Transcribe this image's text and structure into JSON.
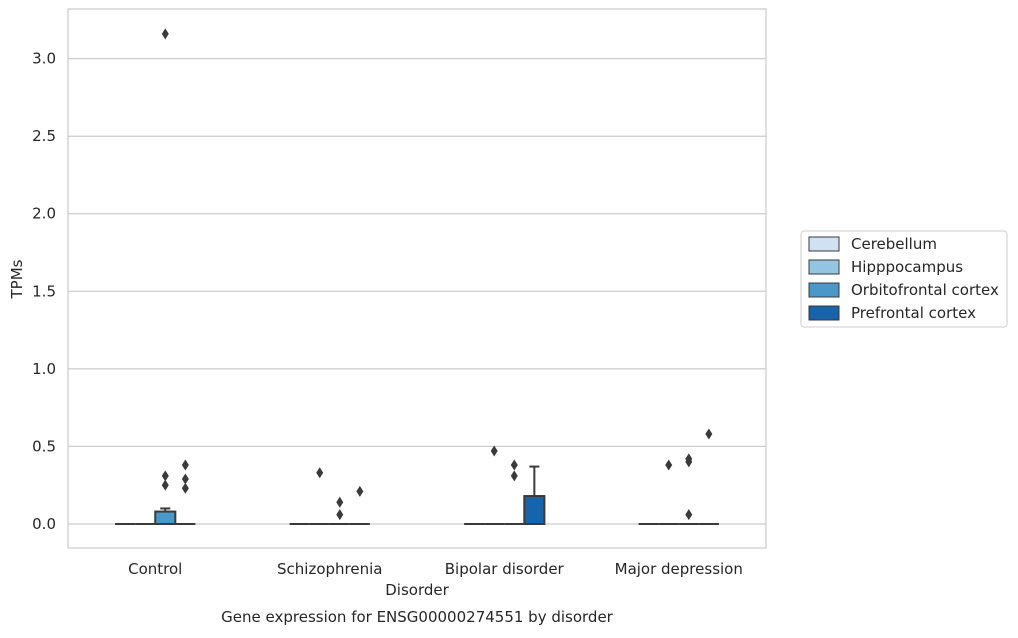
{
  "chart_data": {
    "type": "box",
    "title": "",
    "caption": "Gene expression for ENSG00000274551 by disorder",
    "xlabel": "Disorder",
    "ylabel": "TPMs",
    "ylim": [
      -0.155,
      3.32
    ],
    "yticks": [
      0.0,
      0.5,
      1.0,
      1.5,
      2.0,
      2.5,
      3.0
    ],
    "ytick_labels": [
      "0.0",
      "0.5",
      "1.0",
      "1.5",
      "2.0",
      "2.5",
      "3.0"
    ],
    "grid": "horizontal",
    "legend_position": "right",
    "categories": [
      "Control",
      "Schizophrenia",
      "Bipolar disorder",
      "Major depression"
    ],
    "series": [
      {
        "name": "Cerebellum",
        "color": "#d0e1f2",
        "boxes": [
          {
            "q1": 0,
            "median": 0,
            "q3": 0,
            "whisker_low": 0,
            "whisker_high": 0,
            "outliers": []
          },
          {
            "q1": 0,
            "median": 0,
            "q3": 0,
            "whisker_low": 0,
            "whisker_high": 0,
            "outliers": []
          },
          {
            "q1": 0,
            "median": 0,
            "q3": 0,
            "whisker_low": 0,
            "whisker_high": 0,
            "outliers": []
          },
          {
            "q1": 0,
            "median": 0,
            "q3": 0,
            "whisker_low": 0,
            "whisker_high": 0,
            "outliers": []
          }
        ]
      },
      {
        "name": "Hipppocampus",
        "color": "#94c4df",
        "boxes": [
          {
            "q1": 0,
            "median": 0,
            "q3": 0,
            "whisker_low": 0,
            "whisker_high": 0,
            "outliers": []
          },
          {
            "q1": 0,
            "median": 0,
            "q3": 0,
            "whisker_low": 0,
            "whisker_high": 0,
            "outliers": [
              0.33
            ]
          },
          {
            "q1": 0,
            "median": 0,
            "q3": 0,
            "whisker_low": 0,
            "whisker_high": 0,
            "outliers": [
              0.47
            ]
          },
          {
            "q1": 0,
            "median": 0,
            "q3": 0,
            "whisker_low": 0,
            "whisker_high": 0,
            "outliers": [
              0.38
            ]
          }
        ]
      },
      {
        "name": "Orbitofrontal cortex",
        "color": "#4a98c9",
        "boxes": [
          {
            "q1": 0,
            "median": 0,
            "q3": 0.08,
            "whisker_low": 0,
            "whisker_high": 0.1,
            "outliers": [
              3.16,
              0.31,
              0.25
            ]
          },
          {
            "q1": 0,
            "median": 0,
            "q3": 0,
            "whisker_low": 0,
            "whisker_high": 0,
            "outliers": [
              0.14,
              0.06
            ]
          },
          {
            "q1": 0,
            "median": 0,
            "q3": 0,
            "whisker_low": 0,
            "whisker_high": 0,
            "outliers": [
              0.38,
              0.31
            ]
          },
          {
            "q1": 0,
            "median": 0,
            "q3": 0,
            "whisker_low": 0,
            "whisker_high": 0,
            "outliers": [
              0.42,
              0.4,
              0.06
            ]
          }
        ]
      },
      {
        "name": "Prefrontal cortex",
        "color": "#1764ab",
        "boxes": [
          {
            "q1": 0,
            "median": 0,
            "q3": 0,
            "whisker_low": 0,
            "whisker_high": 0,
            "outliers": [
              0.38,
              0.29,
              0.23
            ]
          },
          {
            "q1": 0,
            "median": 0,
            "q3": 0,
            "whisker_low": 0,
            "whisker_high": 0,
            "outliers": [
              0.21
            ]
          },
          {
            "q1": 0,
            "median": 0,
            "q3": 0.18,
            "whisker_low": 0,
            "whisker_high": 0.37,
            "outliers": []
          },
          {
            "q1": 0,
            "median": 0,
            "q3": 0,
            "whisker_low": 0,
            "whisker_high": 0,
            "outliers": [
              0.58
            ]
          }
        ]
      }
    ]
  }
}
